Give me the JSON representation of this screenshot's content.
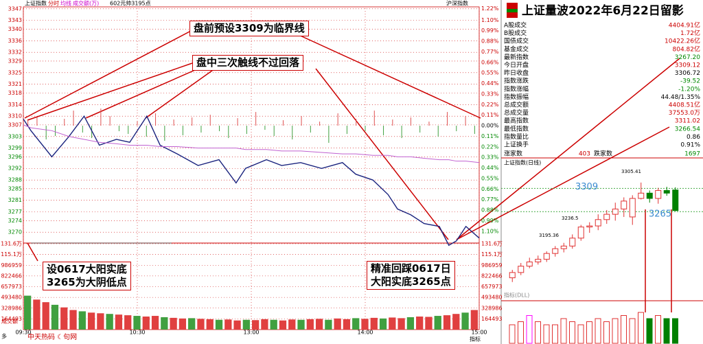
{
  "chart_data": {
    "type": "line",
    "header": {
      "name": "上证指数",
      "tabs": [
        "分时",
        "均线",
        "成交额(万)"
      ],
      "note": "602元帅3195点",
      "right": "沪深指数"
    },
    "x": [
      0,
      4,
      15,
      24,
      32,
      40,
      49,
      56,
      65,
      72,
      81,
      92,
      103,
      112,
      117,
      128,
      136,
      146,
      157,
      168,
      175,
      184,
      192,
      197,
      204,
      211,
      219,
      224,
      228,
      233,
      240
    ],
    "xlim": [
      0,
      240
    ],
    "xticks": [
      {
        "value": 0,
        "label": "09:30"
      },
      {
        "value": 60,
        "label": "10:30"
      },
      {
        "value": 120,
        "label": "13:00"
      },
      {
        "value": 180,
        "label": "14:00"
      },
      {
        "value": 240,
        "label": "15:00"
      }
    ],
    "series": [
      {
        "name": "上证指数",
        "color": "#1a237e",
        "values": [
          3309,
          3305,
          3296,
          3303,
          3310,
          3300,
          3302,
          3301,
          3310,
          3300,
          3297,
          3293,
          3295,
          3287,
          3292,
          3295,
          3293,
          3294,
          3292,
          3294,
          3290,
          3288,
          3283,
          3278,
          3276,
          3273,
          3272,
          3265.5,
          3267,
          3272,
          3268
        ]
      },
      {
        "name": "均线",
        "color": "#c060d0",
        "values": [
          3307,
          3306,
          3305,
          3303,
          3302,
          3301,
          3300.5,
          3300,
          3300,
          3299.5,
          3299.5,
          3299,
          3299,
          3299,
          3298.5,
          3298.5,
          3298,
          3298,
          3297.5,
          3297,
          3297,
          3296.5,
          3296.5,
          3296,
          3296,
          3295.5,
          3295,
          3295,
          3294.5,
          3294.5,
          3294
        ]
      }
    ],
    "ylim": [
      3266.5,
      3347.2
    ],
    "yticks": [
      3347,
      3343,
      3340,
      3336,
      3332,
      3329,
      3325,
      3321,
      3318,
      3314,
      3310,
      3307,
      3303,
      3299,
      3296,
      3292,
      3288,
      3285,
      3281,
      3277,
      3274,
      3270
    ],
    "y2lim": [
      -1.216,
      1.224
    ],
    "y2ticks": [
      {
        "value": 1.22,
        "label": "1.22%"
      },
      {
        "value": 1.1,
        "label": "1.10%"
      },
      {
        "value": 0.99,
        "label": "0.99%"
      },
      {
        "value": 0.88,
        "label": "0.88%"
      },
      {
        "value": 0.77,
        "label": "0.77%"
      },
      {
        "value": 0.66,
        "label": "0.66%"
      },
      {
        "value": 0.55,
        "label": "0.55%"
      },
      {
        "value": 0.44,
        "label": "0.44%"
      },
      {
        "value": 0.33,
        "label": "0.33%"
      },
      {
        "value": 0.22,
        "label": "0.22%"
      },
      {
        "value": 0.11,
        "label": "0.11%"
      },
      {
        "value": 0,
        "label": "0.00%"
      },
      {
        "value": -0.11,
        "label": "0.11%"
      },
      {
        "value": -0.22,
        "label": "0.22%"
      },
      {
        "value": -0.33,
        "label": "0.33%"
      },
      {
        "value": -0.44,
        "label": "0.44%"
      },
      {
        "value": -0.55,
        "label": "0.55%"
      },
      {
        "value": -0.66,
        "label": "0.66%"
      },
      {
        "value": -0.77,
        "label": "0.77%"
      },
      {
        "value": -0.88,
        "label": "0.88%"
      },
      {
        "value": -0.99,
        "label": "0.99%"
      },
      {
        "value": -1.1,
        "label": "1.10%"
      }
    ],
    "breadth": [
      8,
      12,
      -20,
      -15,
      10,
      22,
      -10,
      -18,
      25,
      14,
      -8,
      -12,
      6,
      -16,
      18,
      -22,
      9,
      -14,
      12,
      -10,
      16,
      -8,
      -18,
      11,
      -12,
      20,
      -6,
      -15,
      8,
      -20,
      14,
      -10,
      6,
      -25,
      18,
      -12,
      10,
      -8,
      22,
      -14,
      9,
      -18,
      12,
      -10,
      6,
      -16,
      20,
      -8,
      14,
      -12
    ],
    "volume": {
      "ylim": [
        0,
        1316000
      ],
      "yticks": [
        {
          "value": 1316000,
          "label": "131.6万"
        },
        {
          "value": 1151000,
          "label": "115.1万"
        },
        986959,
        822466,
        657973,
        493480,
        328986,
        164493
      ],
      "values": [
        520000,
        460000,
        420000,
        380000,
        340000,
        300000,
        280000,
        260000,
        250000,
        240000,
        230000,
        220000,
        210000,
        200000,
        210000,
        190000,
        180000,
        170000,
        175000,
        165000,
        160000,
        150000,
        155000,
        140000,
        150000,
        145000,
        160000,
        150000,
        140000,
        155000,
        150000,
        160000,
        165000,
        150000,
        170000,
        160000,
        175000,
        165000,
        180000,
        170000,
        185000,
        175000,
        190000,
        200000,
        195000,
        210000,
        220000,
        240000,
        260000,
        300000
      ],
      "label": "成交额",
      "sub": "多"
    },
    "annotations": [
      "盘前预设3309为临界线",
      "盘中三次触线不过回落",
      "设0617大阳实底\n3265为大阴低点",
      "精准回踩0617日\n大阳实底3265点"
    ],
    "footer": {
      "brand": "中天热码 ☾句网",
      "right": "指标"
    }
  },
  "panel": {
    "title": "上证量波2022年6月22日留影",
    "rows": [
      {
        "label": "A股成交",
        "value": "4404.91亿",
        "color": "#c00"
      },
      {
        "label": "B股成交",
        "value": "1.72亿",
        "color": "#c00"
      },
      {
        "label": "国债成交",
        "value": "10422.26亿",
        "color": "#c00"
      },
      {
        "label": "基金成交",
        "value": "804.82亿",
        "color": "#c00"
      },
      {
        "label": "最新指数",
        "value": "3267.20",
        "color": "#080"
      },
      {
        "label": "今日开盘",
        "value": "3309.12",
        "color": "#c00"
      },
      {
        "label": "昨日收盘",
        "value": "3306.72",
        "color": "#000"
      },
      {
        "label": "指数涨跌",
        "value": "-39.52",
        "color": "#080"
      },
      {
        "label": "指数涨幅",
        "value": "-1.20%",
        "color": "#080"
      },
      {
        "label": "指数振幅",
        "value": "44.48/1.35%",
        "color": "#000"
      },
      {
        "label": "总成交额",
        "value": "4408.51亿",
        "color": "#c00"
      },
      {
        "label": "总成交量",
        "value": "37553.0万",
        "color": "#c00"
      },
      {
        "label": "最高指数",
        "value": "3311.02",
        "color": "#c00"
      },
      {
        "label": "最低指数",
        "value": "3266.54",
        "color": "#080"
      },
      {
        "label": "指数量比",
        "value": "0.86",
        "color": "#000"
      },
      {
        "label": "上证换手",
        "value": "0.91%",
        "color": "#000"
      }
    ],
    "breadth": {
      "up_label": "涨家数",
      "up": "403",
      "down_label": "跌家数",
      "down": "1697"
    },
    "kchart": {
      "title": "上证指数(日线)",
      "ylim": [
        3120,
        3325
      ],
      "candles": [
        [
          3140,
          3150,
          3155,
          3132
        ],
        [
          3150,
          3162,
          3168,
          3145
        ],
        [
          3162,
          3170,
          3178,
          3158
        ],
        [
          3170,
          3175,
          3182,
          3165
        ],
        [
          3175,
          3186,
          3190,
          3170
        ],
        [
          3186,
          3195,
          3200,
          3180
        ],
        [
          3195,
          3200,
          3206,
          3188
        ],
        [
          3200,
          3215,
          3222,
          3195
        ],
        [
          3215,
          3236,
          3240,
          3210
        ],
        [
          3236,
          3238,
          3245,
          3225
        ],
        [
          3238,
          3250,
          3260,
          3230
        ],
        [
          3250,
          3260,
          3268,
          3242
        ],
        [
          3260,
          3270,
          3282,
          3248
        ],
        [
          3270,
          3285,
          3292,
          3255
        ],
        [
          3255,
          3290,
          3296,
          3240
        ],
        [
          3290,
          3300,
          3320,
          3288
        ],
        [
          3300,
          3290,
          3305,
          3282
        ],
        [
          3290,
          3305,
          3310,
          3280
        ],
        [
          3305,
          3300,
          3312,
          3295
        ],
        [
          3306,
          3267,
          3311,
          3266
        ]
      ],
      "levels": [
        {
          "value": 3309,
          "label": "3309"
        },
        {
          "value": 3265,
          "label": "3265"
        }
      ],
      "labels": [
        "3305.41",
        "3236.5",
        "3195.36"
      ],
      "ind_title": "指标(DLL)",
      "vols": [
        6,
        7,
        9,
        7,
        6,
        6,
        8,
        7,
        6,
        7,
        8,
        7,
        8,
        9,
        8,
        10,
        8,
        9,
        8,
        8
      ]
    }
  }
}
